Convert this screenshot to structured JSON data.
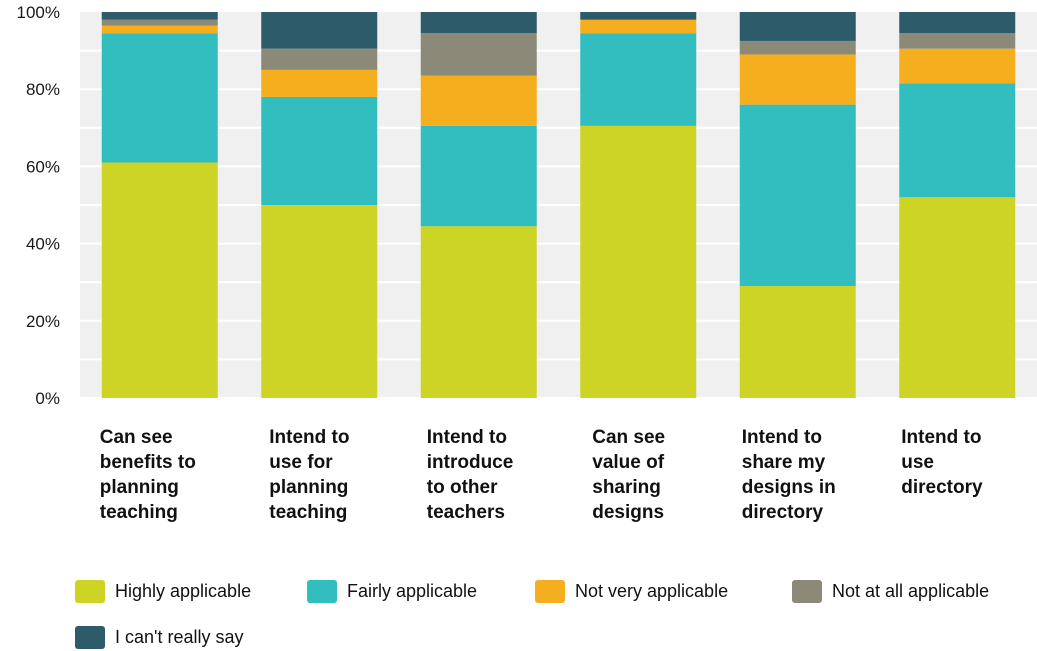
{
  "chart_data": {
    "type": "bar",
    "stacked": true,
    "percent": true,
    "categories": [
      "Can see\nbenefits to\nplanning\nteaching",
      "Intend to\nuse for\nplanning\nteaching",
      "Intend to\nintroduce\nto other\nteachers",
      "Can see\nvalue of\nsharing\ndesigns",
      "Intend to\nshare my\ndesigns in\ndirectory",
      "Intend to\nuse\ndirectory"
    ],
    "series": [
      {
        "name": "Highly applicable",
        "color": "#cdd426",
        "values": [
          61,
          50,
          44.5,
          70.5,
          29,
          52
        ]
      },
      {
        "name": "Fairly applicable",
        "color": "#32bdbf",
        "values": [
          33.5,
          28,
          26,
          24,
          47,
          29.5
        ]
      },
      {
        "name": "Not very applicable",
        "color": "#f5ae1e",
        "values": [
          2,
          7,
          13,
          3.5,
          13,
          9
        ]
      },
      {
        "name": "Not at all applicable",
        "color": "#8b8a78",
        "values": [
          1.5,
          5.5,
          11,
          0,
          3.5,
          4
        ]
      },
      {
        "name": "I can't really say",
        "color": "#2d5b6a",
        "values": [
          2,
          9.5,
          5.5,
          2,
          7.5,
          5.5
        ]
      }
    ],
    "yticks": [
      "0%",
      "20%",
      "40%",
      "60%",
      "80%",
      "100%"
    ],
    "ylim": [
      0,
      100
    ],
    "grid": true,
    "legend_position": "bottom"
  }
}
